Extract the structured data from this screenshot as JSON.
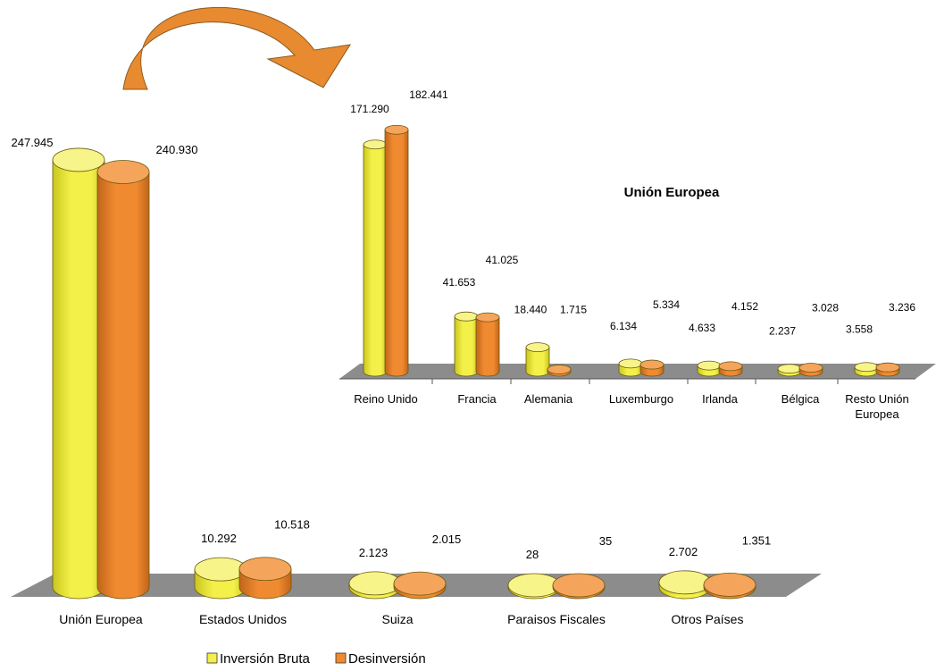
{
  "colors": {
    "inversion": "#f3f04a",
    "inversion_top": "#f7f48a",
    "inversion_side": "#c9c61c",
    "desinversion": "#f08a30",
    "desinversion_top": "#f5a45c",
    "desinversion_side": "#c1651a",
    "floor": "#8c8c8c",
    "arrow": "#e88a30"
  },
  "legend": {
    "items": [
      {
        "label": "Inversión Bruta",
        "color": "#f3f04a"
      },
      {
        "label": "Desinversión",
        "color": "#f08a30"
      }
    ],
    "placement": "bottom-center"
  },
  "chart_data": [
    {
      "type": "bar",
      "style": "3d-cylinder",
      "title": "",
      "categories": [
        "Unión Europea",
        "Estados Unidos",
        "Suiza",
        "Paraisos Fiscales",
        "Otros Países"
      ],
      "series": [
        {
          "name": "Inversión Bruta",
          "values": [
            247945,
            10292,
            2123,
            28,
            2702
          ],
          "labels": [
            "247.945",
            "10.292",
            "2.123",
            "28",
            "2.702"
          ]
        },
        {
          "name": "Desinversión",
          "values": [
            240930,
            10518,
            2015,
            35,
            1351
          ],
          "labels": [
            "240.930",
            "10.518",
            "2.015",
            "35",
            "1.351"
          ]
        }
      ],
      "grid": false
    },
    {
      "type": "bar",
      "style": "3d-cylinder",
      "title": "Unión Europea",
      "categories": [
        "Reino Unido",
        "Francia",
        "Alemania",
        "Luxemburgo",
        "Irlanda",
        "Bélgica",
        "Resto Unión Europea"
      ],
      "series": [
        {
          "name": "Inversión Bruta",
          "values": [
            171290,
            41653,
            18440,
            6134,
            4633,
            2237,
            3558
          ],
          "labels": [
            "171.290",
            "41.653",
            "18.440",
            "6.134",
            "4.633",
            "2.237",
            "3.558"
          ]
        },
        {
          "name": "Desinversión",
          "values": [
            182441,
            41025,
            1715,
            5334,
            4152,
            3028,
            3236
          ],
          "labels": [
            "182.441",
            "41.025",
            "1.715",
            "5.334",
            "4.152",
            "3.028",
            "3.236"
          ]
        }
      ],
      "grid": false
    }
  ]
}
